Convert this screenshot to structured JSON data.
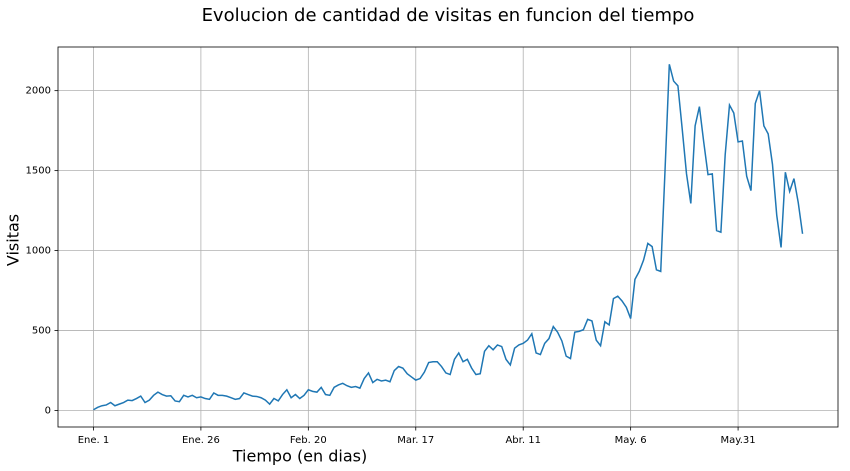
{
  "chart_data": {
    "type": "line",
    "title": "Evolucion de cantidad de visitas en funcion del tiempo",
    "xlabel": "Tiempo (en dias)",
    "ylabel": "Visitas",
    "x": [
      0,
      1,
      2,
      3,
      4,
      5,
      6,
      7,
      8,
      9,
      10,
      11,
      12,
      13,
      14,
      15,
      16,
      17,
      18,
      19,
      20,
      21,
      22,
      23,
      24,
      25,
      26,
      27,
      28,
      29,
      30,
      31,
      32,
      33,
      34,
      35,
      36,
      37,
      38,
      39,
      40,
      41,
      42,
      43,
      44,
      45,
      46,
      47,
      48,
      49,
      50,
      51,
      52,
      53,
      54,
      55,
      56,
      57,
      58,
      59,
      60,
      61,
      62,
      63,
      64,
      65,
      66,
      67,
      68,
      69,
      70,
      71,
      72,
      73,
      74,
      75,
      76,
      77,
      78,
      79,
      80,
      81,
      82,
      83,
      84,
      85,
      86,
      87,
      88,
      89,
      90,
      91,
      92,
      93,
      94,
      95,
      96,
      97,
      98,
      99,
      100,
      101,
      102,
      103,
      104,
      105,
      106,
      107,
      108,
      109,
      110,
      111,
      112,
      113,
      114,
      115,
      116,
      117,
      118,
      119,
      120,
      121,
      122,
      123,
      124,
      125,
      126,
      127,
      128,
      129,
      130,
      131,
      132,
      133,
      134,
      135,
      136,
      137,
      138,
      139,
      140,
      141,
      142,
      143,
      144,
      145,
      146,
      147,
      148,
      149,
      150,
      151,
      152,
      153,
      154,
      155,
      156,
      157,
      158,
      159,
      160,
      161,
      162,
      163,
      164,
      165
    ],
    "series": [
      {
        "name": "Visitas",
        "color": "#1f77b4",
        "values": [
          5,
          20,
          30,
          35,
          50,
          30,
          40,
          50,
          65,
          62,
          75,
          90,
          50,
          65,
          95,
          115,
          100,
          90,
          92,
          60,
          55,
          95,
          85,
          95,
          80,
          85,
          75,
          70,
          110,
          95,
          95,
          90,
          80,
          70,
          75,
          110,
          100,
          90,
          88,
          80,
          65,
          40,
          75,
          60,
          100,
          130,
          80,
          100,
          75,
          95,
          130,
          120,
          115,
          145,
          100,
          95,
          145,
          160,
          170,
          155,
          145,
          150,
          140,
          200,
          235,
          175,
          195,
          185,
          190,
          180,
          250,
          275,
          265,
          230,
          210,
          190,
          200,
          240,
          300,
          305,
          305,
          275,
          235,
          225,
          320,
          360,
          305,
          320,
          265,
          225,
          230,
          370,
          405,
          380,
          410,
          400,
          320,
          285,
          390,
          410,
          420,
          440,
          480,
          360,
          350,
          420,
          450,
          525,
          490,
          435,
          340,
          325,
          490,
          495,
          505,
          570,
          560,
          440,
          405,
          555,
          535,
          700,
          715,
          685,
          645,
          575,
          820,
          870,
          940,
          1045,
          1025,
          880,
          870,
          1500,
          2165,
          2060,
          2030,
          1760,
          1480,
          1295,
          1780,
          1900,
          1680,
          1475,
          1480,
          1125,
          1115,
          1600,
          1910,
          1860,
          1680,
          1685,
          1465,
          1375,
          1920,
          2000,
          1780,
          1730,
          1540,
          1220,
          1020,
          1490,
          1370,
          1450,
          1300,
          1105
        ]
      }
    ],
    "xlim": [
      -8.25,
      173.25
    ],
    "ylim": [
      -103,
      2273
    ],
    "xticks": [
      {
        "value": 0,
        "label": "Ene. 1"
      },
      {
        "value": 25,
        "label": "Ene. 26"
      },
      {
        "value": 50,
        "label": "Feb. 20"
      },
      {
        "value": 75,
        "label": "Mar. 17"
      },
      {
        "value": 100,
        "label": "Abr. 11"
      },
      {
        "value": 125,
        "label": "May. 6"
      },
      {
        "value": 150,
        "label": "May.31"
      }
    ],
    "yticks": [
      0,
      500,
      1000,
      1500,
      2000
    ],
    "grid": true
  }
}
